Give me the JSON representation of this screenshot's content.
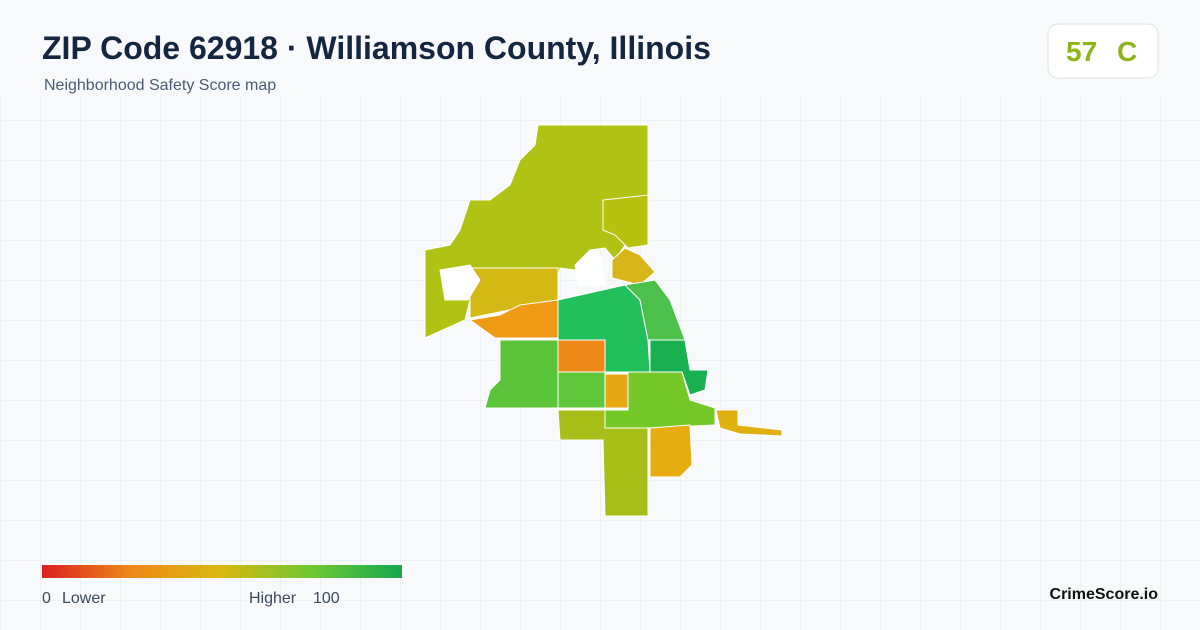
{
  "header": {
    "title": "ZIP Code 62918 · Williamson County, Illinois",
    "subtitle": "Neighborhood Safety Score map"
  },
  "score": {
    "value": 57,
    "grade": "C"
  },
  "legend": {
    "min": 0,
    "min_label": "Lower",
    "max_label": "Higher",
    "max": 100
  },
  "brand": "CrimeScore.io"
}
